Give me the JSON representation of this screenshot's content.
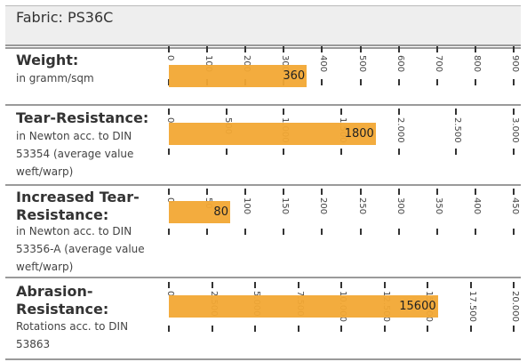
{
  "header": {
    "title": "Fabric: PS36C"
  },
  "rows": [
    {
      "title_lines": [
        "Weight:"
      ],
      "sub_lines": [
        "in gramm/sqm"
      ],
      "value": 360,
      "value_label": "360",
      "axis_max": 900,
      "ticks": [
        {
          "label": "0",
          "value": 0
        },
        {
          "label": "100",
          "value": 100
        },
        {
          "label": "200",
          "value": 200
        },
        {
          "label": "300",
          "value": 300
        },
        {
          "label": "400",
          "value": 400
        },
        {
          "label": "500",
          "value": 500
        },
        {
          "label": "600",
          "value": 600
        },
        {
          "label": "700",
          "value": 700
        },
        {
          "label": "800",
          "value": 800
        },
        {
          "label": "900",
          "value": 900
        }
      ]
    },
    {
      "title_lines": [
        "Tear-Resistance:"
      ],
      "sub_lines": [
        "in Newton acc. to DIN",
        "53354 (average value",
        "weft/warp)"
      ],
      "value": 1800,
      "value_label": "1800",
      "axis_max": 3000,
      "ticks": [
        {
          "label": "0",
          "value": 0
        },
        {
          "label": "500",
          "value": 500
        },
        {
          "label": "1.000",
          "value": 1000
        },
        {
          "label": "1.500",
          "value": 1500
        },
        {
          "label": "2.000",
          "value": 2000
        },
        {
          "label": "2.500",
          "value": 2500
        },
        {
          "label": "3.000",
          "value": 3000
        }
      ]
    },
    {
      "title_lines": [
        "Increased Tear-",
        "Resistance:"
      ],
      "sub_lines": [
        "in Newton acc. to DIN",
        "53356-A (average value",
        "weft/warp)"
      ],
      "value": 80,
      "value_label": "80",
      "axis_max": 450,
      "ticks": [
        {
          "label": "0",
          "value": 0
        },
        {
          "label": "50",
          "value": 50
        },
        {
          "label": "100",
          "value": 100
        },
        {
          "label": "150",
          "value": 150
        },
        {
          "label": "200",
          "value": 200
        },
        {
          "label": "250",
          "value": 250
        },
        {
          "label": "300",
          "value": 300
        },
        {
          "label": "350",
          "value": 350
        },
        {
          "label": "400",
          "value": 400
        },
        {
          "label": "450",
          "value": 450
        }
      ]
    },
    {
      "title_lines": [
        "Abrasion-",
        "Resistance:"
      ],
      "sub_lines": [
        "Rotations acc. to DIN",
        "53863"
      ],
      "value": 15600,
      "value_label": "15600",
      "axis_max": 20000,
      "ticks": [
        {
          "label": "0",
          "value": 0
        },
        {
          "label": "2.500",
          "value": 2500
        },
        {
          "label": "5.000",
          "value": 5000
        },
        {
          "label": "7.500",
          "value": 7500
        },
        {
          "label": "10.000",
          "value": 10000
        },
        {
          "label": "12.500",
          "value": 12500
        },
        {
          "label": "15.000",
          "value": 15000
        },
        {
          "label": "17.500",
          "value": 17500
        },
        {
          "label": "20.000",
          "value": 20000
        }
      ]
    }
  ],
  "colors": {
    "bar": "#f2a834",
    "divider": "#9a9a9a",
    "header_bg": "#eeeeee"
  }
}
